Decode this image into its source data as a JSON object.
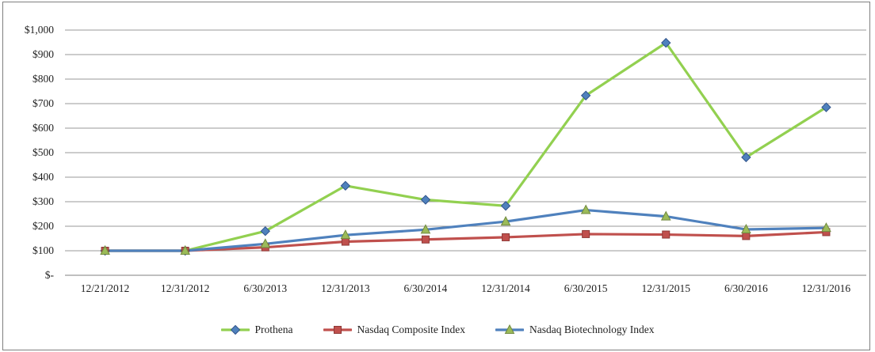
{
  "chart_data": {
    "type": "line",
    "title": "",
    "categories": [
      "12/21/2012",
      "12/31/2012",
      "6/30/2013",
      "12/31/2013",
      "6/30/2014",
      "12/31/2014",
      "6/30/2015",
      "12/31/2015",
      "6/30/2016",
      "12/31/2016"
    ],
    "series": [
      {
        "name": "Prothena",
        "values": [
          100,
          100,
          180,
          365,
          308,
          283,
          733,
          948,
          481,
          685
        ],
        "line_color": "#92D050",
        "marker": "diamond",
        "marker_color": "#4F81BD",
        "marker_border": "#31548C"
      },
      {
        "name": "Nasdaq Composite Index",
        "values": [
          100,
          100,
          114,
          137,
          146,
          155,
          168,
          166,
          160,
          176
        ],
        "line_color": "#C0504D",
        "marker": "square",
        "marker_color": "#C0504D",
        "marker_border": "#8E3937"
      },
      {
        "name": "Nasdaq Biotechnology Index",
        "values": [
          100,
          100,
          128,
          164,
          186,
          219,
          266,
          240,
          187,
          193
        ],
        "line_color": "#4F81BD",
        "marker": "triangle",
        "marker_color": "#9BBB59",
        "marker_border": "#71893F"
      }
    ],
    "xlabel": "",
    "ylabel": "",
    "ylim": [
      0,
      1000
    ],
    "ytick_step": 100,
    "ytick_labels": [
      "$-",
      "$100",
      "$200",
      "$300",
      "$400",
      "$500",
      "$600",
      "$700",
      "$800",
      "$900",
      "$1,000"
    ],
    "grid": "horizontal",
    "gridline_color": "#999999",
    "axis_line_color": "#808080",
    "legend_position": "bottom",
    "frame_border_color": "#7f7f7f",
    "text_color": "#1f1f1f"
  }
}
